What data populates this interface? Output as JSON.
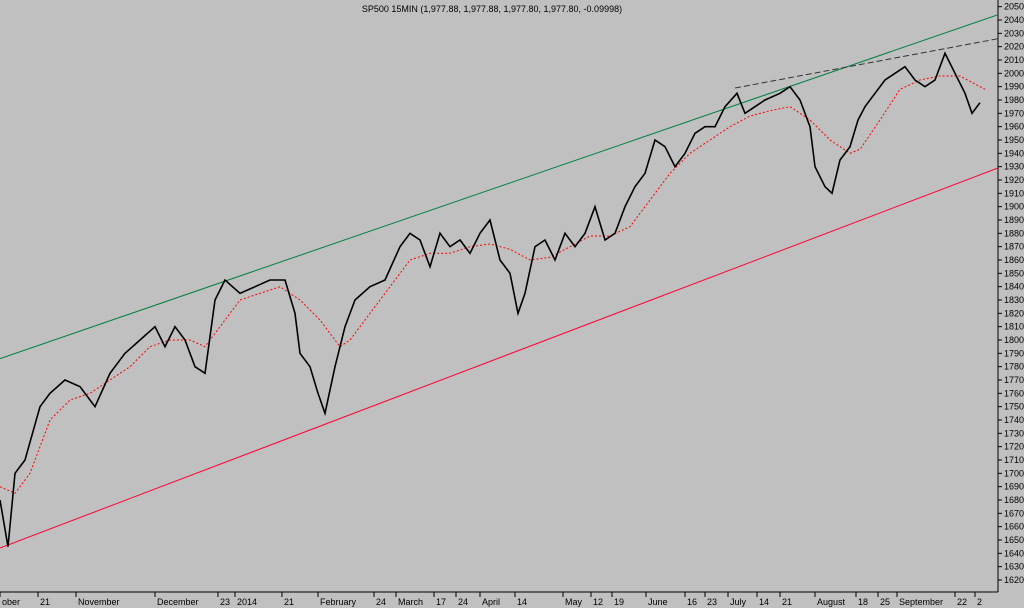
{
  "chart_data": {
    "type": "line",
    "title": "SP500 15MIN (1,977.88, 1,977.88, 1,977.80, 1,977.80, -0.09998)",
    "background": "#c0c0c0",
    "xlim": [
      0,
      998
    ],
    "ylim": [
      1611,
      2055
    ],
    "yticks": [
      1620,
      1630,
      1640,
      1650,
      1660,
      1670,
      1680,
      1690,
      1700,
      1710,
      1720,
      1730,
      1740,
      1750,
      1760,
      1770,
      1780,
      1790,
      1800,
      1810,
      1820,
      1830,
      1840,
      1850,
      1860,
      1870,
      1880,
      1890,
      1900,
      1910,
      1920,
      1930,
      1940,
      1950,
      1960,
      1970,
      1980,
      1990,
      2000,
      2010,
      2020,
      2030,
      2040,
      2050
    ],
    "xticks": [
      {
        "value": 0,
        "label": "ober"
      },
      {
        "value": 38,
        "label": "21"
      },
      {
        "value": 76,
        "label": "November"
      },
      {
        "value": 155,
        "label": "December"
      },
      {
        "value": 218,
        "label": "23"
      },
      {
        "value": 235,
        "label": "2014"
      },
      {
        "value": 282,
        "label": "21"
      },
      {
        "value": 318,
        "label": "February"
      },
      {
        "value": 374,
        "label": "24"
      },
      {
        "value": 396,
        "label": "March"
      },
      {
        "value": 434,
        "label": "17"
      },
      {
        "value": 456,
        "label": "24"
      },
      {
        "value": 480,
        "label": "April"
      },
      {
        "value": 515,
        "label": "14"
      },
      {
        "value": 563,
        "label": "May"
      },
      {
        "value": 591,
        "label": "12"
      },
      {
        "value": 612,
        "label": "19"
      },
      {
        "value": 646,
        "label": "June"
      },
      {
        "value": 685,
        "label": "16"
      },
      {
        "value": 705,
        "label": "23"
      },
      {
        "value": 728,
        "label": "July"
      },
      {
        "value": 757,
        "label": "14"
      },
      {
        "value": 780,
        "label": "21"
      },
      {
        "value": 815,
        "label": "August"
      },
      {
        "value": 856,
        "label": "18"
      },
      {
        "value": 878,
        "label": "25"
      },
      {
        "value": 897,
        "label": "September"
      },
      {
        "value": 955,
        "label": "22"
      },
      {
        "value": 975,
        "label": "2"
      }
    ],
    "series": [
      {
        "color": "#008040",
        "style": "solid",
        "width": 1,
        "x": [
          0,
          998
        ],
        "values": [
          1786,
          2044
        ]
      },
      {
        "color": "#ff0033",
        "style": "solid",
        "width": 1,
        "x": [
          0,
          998
        ],
        "values": [
          1644,
          1929
        ]
      },
      {
        "color": "#333333",
        "style": "dashed",
        "width": 1,
        "x": [
          735,
          998
        ],
        "values": [
          1989,
          2026
        ]
      },
      {
        "color": "#ff0000",
        "style": "dotted",
        "width": 1,
        "x": [
          0,
          15,
          30,
          50,
          70,
          90,
          110,
          130,
          150,
          170,
          190,
          205,
          220,
          240,
          260,
          280,
          300,
          320,
          340,
          350,
          370,
          390,
          410,
          430,
          450,
          470,
          490,
          510,
          530,
          550,
          570,
          590,
          610,
          630,
          650,
          670,
          690,
          710,
          730,
          750,
          770,
          790,
          810,
          830,
          850,
          860,
          880,
          900,
          920,
          940,
          960,
          975,
          985
        ],
        "values": [
          1690,
          1685,
          1700,
          1740,
          1755,
          1760,
          1770,
          1780,
          1795,
          1800,
          1800,
          1795,
          1810,
          1830,
          1835,
          1840,
          1830,
          1815,
          1795,
          1800,
          1820,
          1840,
          1860,
          1865,
          1865,
          1870,
          1872,
          1868,
          1860,
          1862,
          1870,
          1878,
          1878,
          1885,
          1905,
          1925,
          1940,
          1950,
          1960,
          1968,
          1972,
          1975,
          1965,
          1950,
          1940,
          1943,
          1965,
          1988,
          1995,
          1998,
          1998,
          1992,
          1988
        ]
      },
      {
        "color": "#000000",
        "style": "solid",
        "width": 1.6,
        "x": [
          0,
          8,
          15,
          25,
          40,
          50,
          65,
          80,
          95,
          110,
          125,
          140,
          155,
          165,
          175,
          185,
          195,
          205,
          215,
          225,
          240,
          255,
          270,
          285,
          295,
          300,
          310,
          318,
          325,
          335,
          345,
          355,
          370,
          385,
          400,
          410,
          420,
          430,
          440,
          450,
          460,
          470,
          480,
          490,
          500,
          510,
          518,
          525,
          535,
          545,
          555,
          565,
          575,
          585,
          595,
          605,
          615,
          625,
          635,
          645,
          655,
          665,
          675,
          685,
          695,
          705,
          715,
          725,
          737,
          745,
          755,
          765,
          780,
          790,
          800,
          810,
          815,
          825,
          832,
          840,
          850,
          858,
          865,
          875,
          885,
          895,
          905,
          915,
          925,
          935,
          945,
          955,
          965,
          972,
          980
        ],
        "values": [
          1680,
          1645,
          1700,
          1710,
          1750,
          1760,
          1770,
          1765,
          1750,
          1775,
          1790,
          1800,
          1810,
          1795,
          1810,
          1800,
          1780,
          1775,
          1830,
          1845,
          1835,
          1840,
          1845,
          1845,
          1820,
          1790,
          1780,
          1760,
          1745,
          1780,
          1810,
          1830,
          1840,
          1845,
          1870,
          1880,
          1875,
          1855,
          1880,
          1870,
          1875,
          1865,
          1880,
          1890,
          1860,
          1850,
          1820,
          1835,
          1870,
          1875,
          1860,
          1880,
          1870,
          1880,
          1900,
          1875,
          1880,
          1900,
          1915,
          1925,
          1950,
          1945,
          1930,
          1940,
          1955,
          1960,
          1960,
          1975,
          1985,
          1970,
          1975,
          1980,
          1985,
          1990,
          1980,
          1960,
          1930,
          1915,
          1910,
          1935,
          1945,
          1965,
          1975,
          1985,
          1995,
          2000,
          2005,
          1995,
          1990,
          1995,
          2015,
          2000,
          1985,
          1970,
          1978
        ]
      }
    ]
  }
}
